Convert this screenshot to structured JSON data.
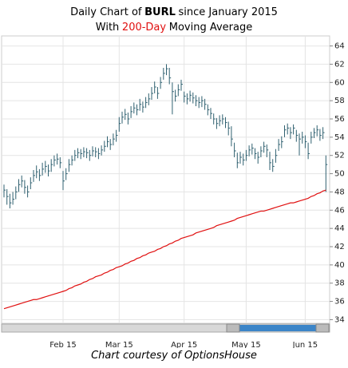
{
  "chart_data": {
    "type": "hlc",
    "title": [
      "Daily Chart of",
      "BURL",
      "since January 2015"
    ],
    "subtitle": [
      "With",
      "200-Day",
      "Moving Average"
    ],
    "footer": "Chart courtesy of OptionsHouse",
    "grid": true,
    "bar_color": "#2f6070",
    "ylim": [
      33.6,
      65.1
    ],
    "yticks": [
      34,
      36,
      38,
      40,
      42,
      44,
      46,
      48,
      50,
      52,
      54,
      56,
      58,
      60,
      62,
      64
    ],
    "categories": [
      null,
      null,
      null,
      null,
      null,
      null,
      null,
      null,
      null,
      null,
      null,
      null,
      null,
      null,
      null,
      null,
      null,
      null,
      null,
      null,
      "Feb 15",
      null,
      null,
      null,
      null,
      null,
      null,
      null,
      null,
      null,
      null,
      null,
      null,
      null,
      null,
      null,
      null,
      null,
      null,
      "Mar 15",
      null,
      null,
      null,
      null,
      null,
      null,
      null,
      null,
      null,
      null,
      null,
      null,
      null,
      null,
      null,
      null,
      null,
      null,
      null,
      null,
      null,
      "Apr 15",
      null,
      null,
      null,
      null,
      null,
      null,
      null,
      null,
      null,
      null,
      null,
      null,
      null,
      null,
      null,
      null,
      null,
      null,
      null,
      null,
      "May 15",
      null,
      null,
      null,
      null,
      null,
      null,
      null,
      null,
      null,
      null,
      null,
      null,
      null,
      null,
      null,
      null,
      null,
      null,
      null,
      "Jun 15",
      null,
      null,
      null,
      null,
      null,
      null,
      null
    ],
    "high": [
      48.8,
      48.3,
      47.8,
      48.0,
      48.6,
      49.4,
      49.8,
      49.3,
      48.7,
      49.6,
      50.4,
      50.9,
      50.5,
      51.2,
      51.4,
      51.0,
      51.6,
      52.0,
      52.2,
      51.8,
      50.3,
      50.6,
      51.6,
      52.0,
      52.6,
      52.8,
      52.7,
      52.9,
      52.8,
      52.6,
      53.0,
      52.9,
      52.8,
      53.1,
      53.6,
      54.1,
      53.8,
      54.4,
      54.8,
      56.2,
      56.8,
      57.1,
      56.7,
      57.4,
      57.8,
      57.6,
      58.2,
      57.9,
      58.4,
      58.8,
      59.5,
      60.1,
      59.5,
      60.6,
      61.6,
      62.0,
      61.6,
      60.0,
      59.2,
      59.8,
      60.3,
      59.0,
      58.8,
      59.1,
      58.9,
      58.6,
      58.4,
      58.5,
      58.2,
      57.6,
      57.2,
      56.6,
      56.1,
      56.4,
      56.5,
      56.2,
      55.7,
      55.2,
      53.4,
      52.3,
      52.4,
      52.2,
      52.6,
      53.1,
      53.3,
      52.8,
      52.4,
      53.0,
      53.5,
      53.2,
      52.4,
      51.6,
      52.7,
      53.8,
      54.1,
      55.3,
      55.5,
      55.1,
      55.4,
      54.8,
      54.4,
      54.6,
      54.2,
      53.4,
      54.6,
      55.0,
      55.3,
      54.9,
      55.1,
      52.0
    ],
    "low": [
      47.4,
      46.6,
      46.2,
      46.6,
      47.2,
      48.0,
      48.5,
      47.8,
      47.4,
      48.3,
      49.1,
      49.5,
      49.2,
      49.8,
      50.1,
      49.7,
      50.2,
      50.8,
      51.0,
      50.6,
      48.2,
      49.3,
      50.2,
      50.9,
      51.4,
      51.7,
      51.6,
      51.8,
      51.7,
      51.4,
      51.9,
      51.8,
      51.6,
      52.0,
      52.4,
      52.9,
      52.6,
      53.1,
      53.5,
      54.6,
      55.5,
      55.9,
      55.4,
      56.1,
      56.6,
      56.4,
      56.9,
      56.7,
      57.2,
      57.5,
      58.1,
      58.8,
      58.2,
      59.3,
      60.3,
      60.8,
      59.8,
      56.5,
      57.9,
      58.5,
      59.1,
      57.8,
      57.6,
      57.9,
      57.7,
      57.4,
      57.2,
      57.3,
      57.0,
      56.4,
      56.0,
      55.4,
      54.9,
      55.2,
      55.4,
      55.0,
      54.2,
      53.0,
      51.8,
      50.6,
      51.1,
      50.9,
      51.4,
      51.9,
      52.1,
      51.6,
      51.1,
      51.8,
      52.3,
      51.8,
      50.4,
      50.2,
      51.2,
      52.5,
      52.8,
      54.0,
      54.3,
      53.8,
      54.3,
      53.5,
      52.0,
      53.3,
      52.8,
      51.6,
      53.3,
      53.9,
      54.1,
      53.6,
      53.8,
      48.0
    ],
    "close": [
      48.2,
      47.5,
      46.8,
      47.2,
      48.0,
      48.8,
      49.2,
      48.5,
      48.0,
      49.0,
      49.8,
      50.2,
      49.8,
      50.5,
      50.8,
      50.3,
      51.0,
      51.5,
      51.6,
      51.2,
      49.2,
      50.0,
      51.0,
      51.5,
      52.0,
      52.3,
      52.2,
      52.4,
      52.3,
      52.0,
      52.5,
      52.4,
      52.2,
      52.6,
      53.0,
      53.5,
      53.2,
      53.8,
      54.2,
      55.5,
      56.2,
      56.5,
      56.0,
      56.8,
      57.2,
      57.0,
      57.6,
      57.3,
      57.8,
      58.2,
      58.8,
      59.5,
      58.8,
      60.0,
      61.0,
      61.5,
      60.5,
      59.0,
      58.5,
      59.2,
      59.8,
      58.5,
      58.2,
      58.6,
      58.3,
      58.0,
      57.8,
      58.0,
      57.6,
      57.0,
      56.6,
      56.0,
      55.5,
      55.8,
      56.0,
      55.6,
      55.0,
      53.8,
      52.5,
      51.2,
      51.8,
      51.5,
      52.0,
      52.6,
      52.8,
      52.2,
      51.8,
      52.5,
      53.0,
      52.6,
      51.2,
      50.8,
      52.0,
      53.2,
      53.5,
      54.8,
      55.0,
      54.5,
      55.0,
      54.2,
      53.8,
      54.0,
      53.5,
      52.2,
      54.0,
      54.5,
      54.8,
      54.2,
      54.5,
      51.0
    ],
    "ma": {
      "color": "#e01010",
      "values": [
        35.2,
        35.3,
        35.4,
        35.5,
        35.6,
        35.7,
        35.8,
        35.9,
        36.0,
        36.1,
        36.2,
        36.2,
        36.3,
        36.4,
        36.5,
        36.6,
        36.7,
        36.8,
        36.9,
        37.0,
        37.1,
        37.2,
        37.4,
        37.5,
        37.7,
        37.8,
        37.9,
        38.1,
        38.2,
        38.4,
        38.5,
        38.7,
        38.8,
        38.9,
        39.1,
        39.2,
        39.4,
        39.5,
        39.7,
        39.8,
        39.9,
        40.1,
        40.2,
        40.4,
        40.5,
        40.7,
        40.8,
        41.0,
        41.1,
        41.3,
        41.4,
        41.5,
        41.7,
        41.8,
        42.0,
        42.1,
        42.3,
        42.4,
        42.6,
        42.7,
        42.9,
        43.0,
        43.1,
        43.2,
        43.3,
        43.5,
        43.6,
        43.7,
        43.8,
        43.9,
        44.0,
        44.1,
        44.3,
        44.4,
        44.5,
        44.6,
        44.7,
        44.8,
        44.9,
        45.1,
        45.2,
        45.3,
        45.4,
        45.5,
        45.6,
        45.7,
        45.8,
        45.9,
        45.9,
        46.0,
        46.1,
        46.2,
        46.3,
        46.4,
        46.5,
        46.6,
        46.7,
        46.8,
        46.8,
        46.9,
        47.0,
        47.1,
        47.2,
        47.3,
        47.5,
        47.6,
        47.8,
        47.9,
        48.1,
        48.2
      ]
    }
  }
}
